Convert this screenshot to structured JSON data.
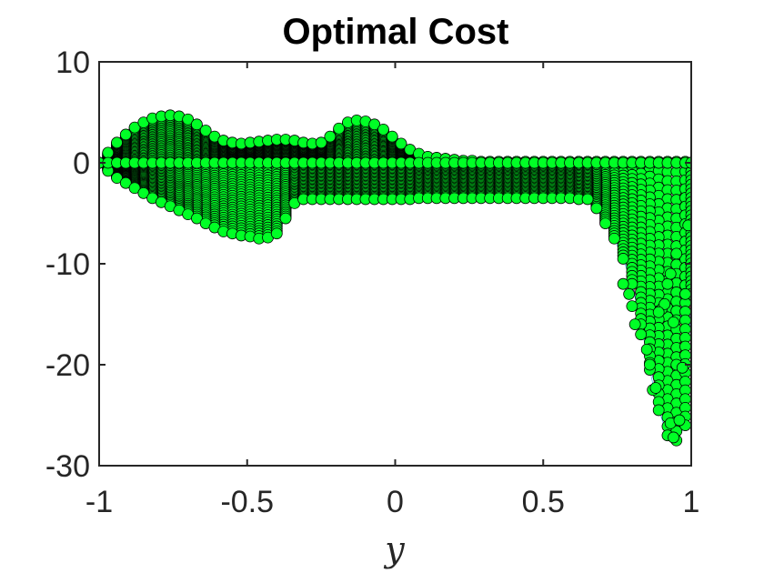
{
  "chart_data": {
    "type": "scatter",
    "title": "Optimal Cost",
    "xlabel": "y",
    "ylabel": "",
    "xlim": [
      -1,
      1
    ],
    "ylim": [
      -30,
      10
    ],
    "xticks": [
      -1,
      -0.5,
      0,
      0.5,
      1
    ],
    "xtick_labels": [
      "-1",
      "-0.5",
      "0",
      "0.5",
      "1"
    ],
    "yticks": [
      10,
      0,
      -10,
      -20,
      -30
    ],
    "ytick_labels": [
      "10",
      "0",
      "-10",
      "-20",
      "-30"
    ],
    "grid": false,
    "legend": "none",
    "marker_color": "#00ff26",
    "marker_edge_color": "#000000",
    "line_colors": [
      "#0072bd",
      "#d95319",
      "#edb120",
      "#7e2f8e",
      "#77ac30",
      "#4dbeee",
      "#a2142f"
    ],
    "x": [
      -1,
      -0.97,
      -0.94,
      -0.91,
      -0.88,
      -0.85,
      -0.82,
      -0.79,
      -0.76,
      -0.73,
      -0.7,
      -0.67,
      -0.64,
      -0.61,
      -0.58,
      -0.55,
      -0.52,
      -0.49,
      -0.46,
      -0.43,
      -0.4,
      -0.37,
      -0.34,
      -0.31,
      -0.28,
      -0.25,
      -0.22,
      -0.19,
      -0.16,
      -0.13,
      -0.1,
      -0.07,
      -0.04,
      -0.01,
      0.02,
      0.05,
      0.08,
      0.11,
      0.14,
      0.17,
      0.2,
      0.23,
      0.26,
      0.29,
      0.32,
      0.35,
      0.38,
      0.41,
      0.44,
      0.47,
      0.5,
      0.53,
      0.56,
      0.59,
      0.62,
      0.65,
      0.68,
      0.71,
      0.74,
      0.77,
      0.8,
      0.83,
      0.86,
      0.89,
      0.92,
      0.95,
      0.98,
      1
    ],
    "upper_envelope": [
      0,
      1.0,
      2.0,
      2.8,
      3.5,
      4.0,
      4.4,
      4.6,
      4.7,
      4.6,
      4.3,
      3.8,
      3.2,
      2.6,
      2.2,
      2.0,
      1.9,
      2.0,
      2.1,
      2.2,
      2.3,
      2.3,
      2.2,
      2.0,
      1.9,
      2.0,
      2.6,
      3.4,
      4.0,
      4.2,
      4.1,
      3.8,
      3.3,
      2.6,
      1.9,
      1.3,
      0.9,
      0.6,
      0.5,
      0.4,
      0.3,
      0.2,
      0.2,
      0.1,
      0.1,
      0.1,
      0.1,
      0.1,
      0.1,
      0.1,
      0.1,
      0.1,
      0.1,
      0.1,
      0.1,
      0.1,
      0.1,
      0.1,
      0.1,
      0.1,
      0.1,
      0.1,
      0.1,
      0.1,
      0.1,
      0.1,
      0.1,
      0
    ],
    "lower_envelope": [
      0,
      -0.8,
      -1.5,
      -2.0,
      -2.5,
      -3.0,
      -3.5,
      -3.9,
      -4.3,
      -4.7,
      -5.1,
      -5.5,
      -6.0,
      -6.4,
      -6.8,
      -7.0,
      -7.2,
      -7.3,
      -7.5,
      -7.4,
      -7.0,
      -5.5,
      -4.0,
      -3.6,
      -3.6,
      -3.6,
      -3.6,
      -3.6,
      -3.6,
      -3.6,
      -3.6,
      -3.6,
      -3.6,
      -3.6,
      -3.6,
      -3.6,
      -3.5,
      -3.5,
      -3.5,
      -3.5,
      -3.5,
      -3.5,
      -3.5,
      -3.5,
      -3.5,
      -3.5,
      -3.5,
      -3.5,
      -3.5,
      -3.5,
      -3.5,
      -3.5,
      -3.5,
      -3.5,
      -3.6,
      -3.6,
      -4.5,
      -6.0,
      -7.5,
      -9.5,
      -12.0,
      -16.0,
      -20.5,
      -24.5,
      -27.0,
      -27.5,
      -26.0,
      -13.0
    ],
    "scattered_points": [
      {
        "x": 0.77,
        "y": -12.0
      },
      {
        "x": 0.79,
        "y": -13.0
      },
      {
        "x": 0.8,
        "y": -14.2
      },
      {
        "x": 0.81,
        "y": -16.0
      },
      {
        "x": 0.83,
        "y": -17.0
      },
      {
        "x": 0.85,
        "y": -18.5
      },
      {
        "x": 0.86,
        "y": -20.0
      },
      {
        "x": 0.87,
        "y": -22.5
      },
      {
        "x": 0.88,
        "y": -22.3
      },
      {
        "x": 0.9,
        "y": -14.5
      },
      {
        "x": 0.91,
        "y": -14.0
      },
      {
        "x": 0.92,
        "y": -12.0
      },
      {
        "x": 0.93,
        "y": -25.8
      },
      {
        "x": 0.94,
        "y": -27.2
      },
      {
        "x": 0.95,
        "y": -20.0
      },
      {
        "x": 0.96,
        "y": -25.5
      },
      {
        "x": 0.97,
        "y": -20.3
      },
      {
        "x": 0.98,
        "y": -13.0
      },
      {
        "x": 0.94,
        "y": -15.8
      },
      {
        "x": 0.95,
        "y": -9.0
      },
      {
        "x": 0.99,
        "y": -6.2
      },
      {
        "x": 0.93,
        "y": -11.0
      },
      {
        "x": 0.89,
        "y": -14.8
      }
    ],
    "baseline_value": 0,
    "n_curves": 30
  }
}
